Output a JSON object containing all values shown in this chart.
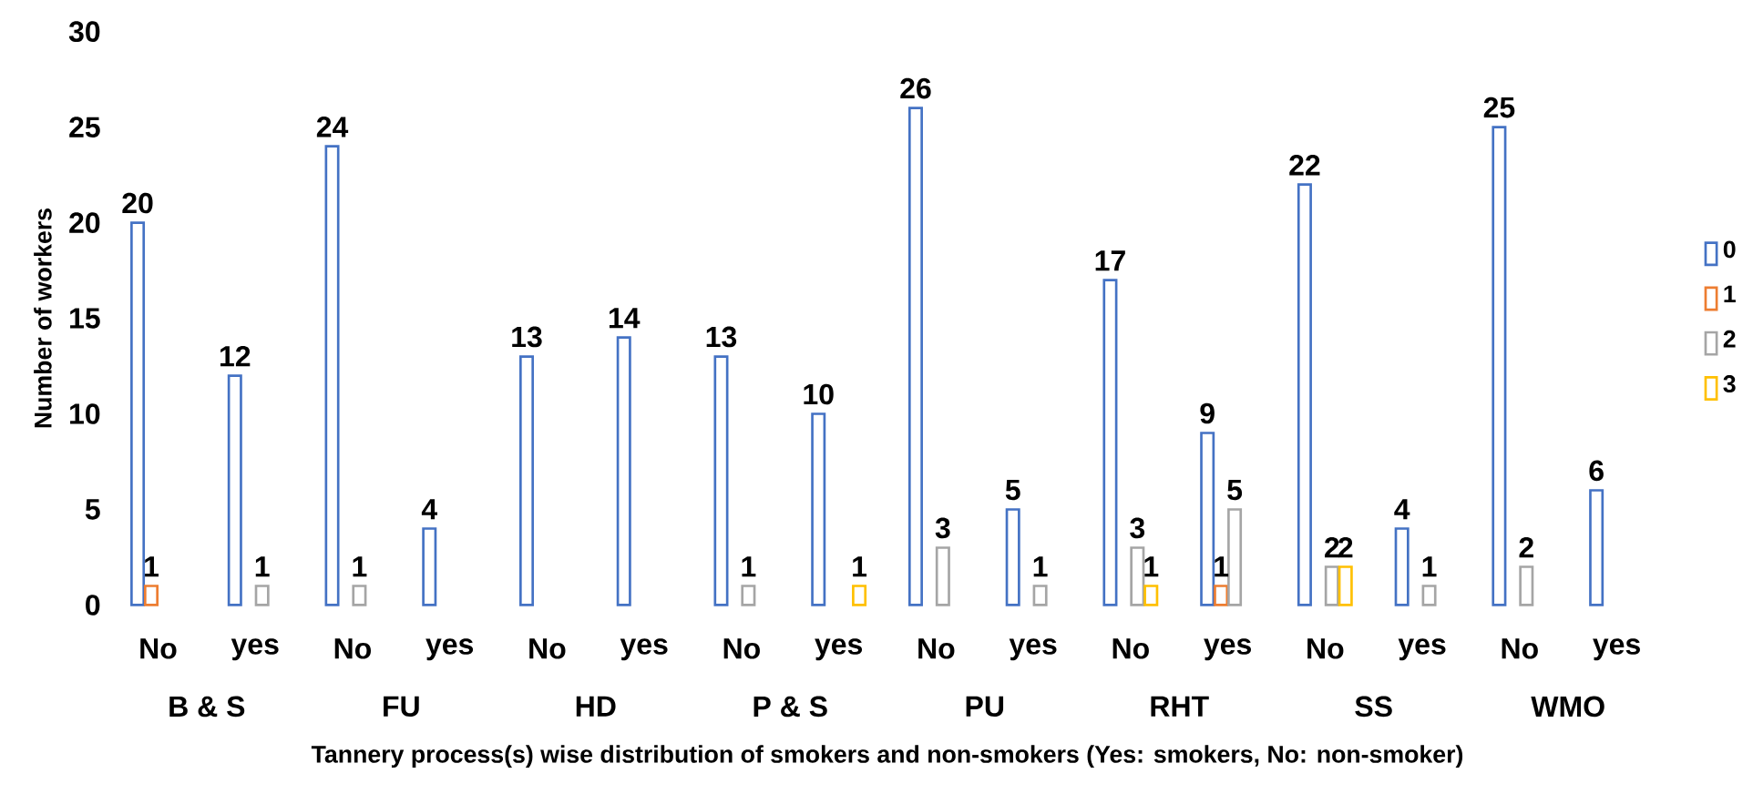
{
  "chart_data": {
    "type": "bar",
    "categories": [
      "No",
      "yes",
      "No",
      "yes",
      "No",
      "yes",
      "No",
      "yes",
      "No",
      "yes",
      "No",
      "yes",
      "No",
      "yes",
      "No",
      "yes"
    ],
    "xlabel": "Tannery process(s) wise distribution of smokers and non-smokers (Yes: smokers, No: non-smoker)",
    "ylabel": "Number of workers",
    "annotations": [
      "B & S",
      "FU",
      "HD",
      "P & S",
      "PU",
      "RHT",
      "SS",
      "WMO"
    ],
    "series": [
      {
        "name": "0",
        "color": "#4472c4",
        "values": [
          20,
          12,
          24,
          4,
          13,
          14,
          13,
          10,
          26,
          5,
          17,
          9,
          22,
          4,
          25,
          6
        ]
      },
      {
        "name": "1",
        "color": "#ed7d31",
        "values": [
          1,
          null,
          null,
          null,
          null,
          null,
          null,
          null,
          null,
          null,
          null,
          1,
          null,
          null,
          null,
          null
        ]
      },
      {
        "name": "2",
        "color": "#a5a5a5",
        "values": [
          null,
          1,
          1,
          null,
          null,
          null,
          1,
          null,
          3,
          1,
          3,
          5,
          2,
          1,
          2,
          null
        ]
      },
      {
        "name": "3",
        "color": "#ffc000",
        "values": [
          null,
          null,
          null,
          null,
          null,
          null,
          null,
          1,
          null,
          null,
          1,
          null,
          2,
          null,
          null,
          null
        ]
      }
    ],
    "ylim": [
      0,
      30
    ],
    "yticks": [
      0,
      5,
      10,
      15,
      20,
      25,
      30
    ],
    "data_labels": true,
    "legend": "right",
    "grid": false
  }
}
